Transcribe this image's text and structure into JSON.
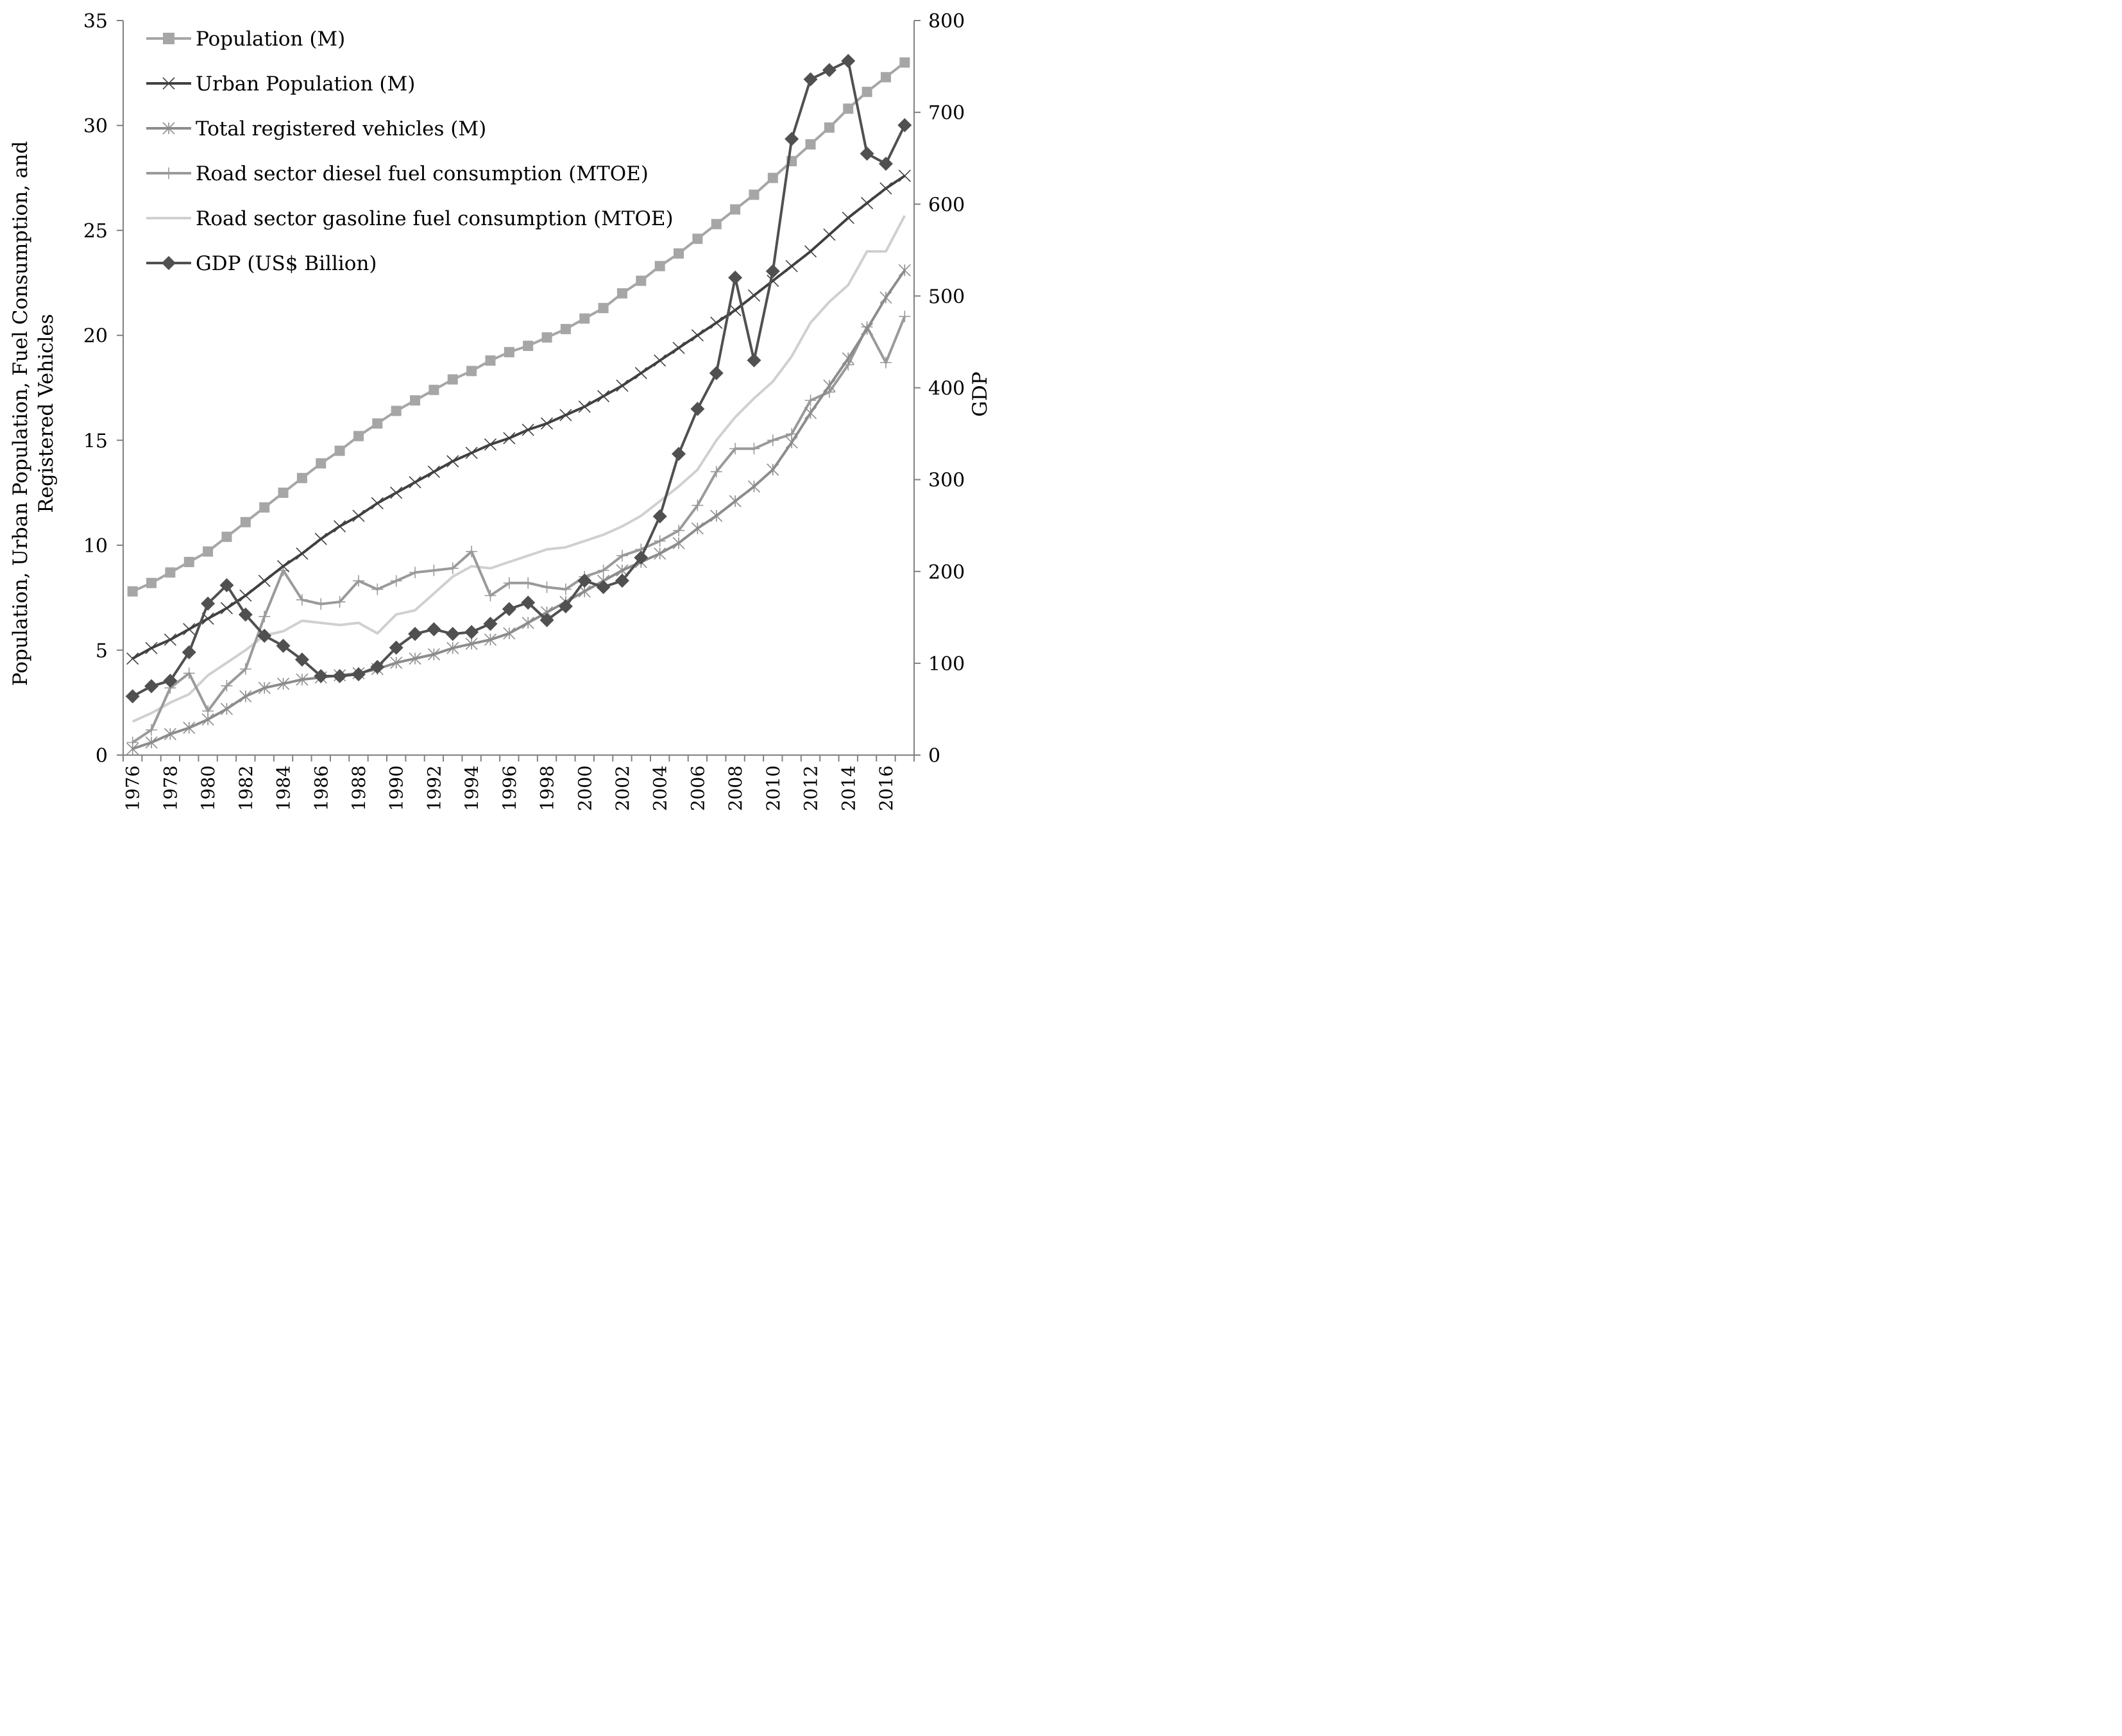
{
  "chart_data": {
    "type": "line",
    "x": [
      1976,
      1977,
      1978,
      1979,
      1980,
      1981,
      1982,
      1983,
      1984,
      1985,
      1986,
      1987,
      1988,
      1989,
      1990,
      1991,
      1992,
      1993,
      1994,
      1995,
      1996,
      1997,
      1998,
      1999,
      2000,
      2001,
      2002,
      2003,
      2004,
      2005,
      2006,
      2007,
      2008,
      2009,
      2010,
      2011,
      2012,
      2013,
      2014,
      2015,
      2016,
      2017
    ],
    "x_tick_labels": [
      "1976",
      "1978",
      "1980",
      "1982",
      "1984",
      "1986",
      "1988",
      "1990",
      "1992",
      "1994",
      "1996",
      "1998",
      "2000",
      "2002",
      "2004",
      "2006",
      "2008",
      "2010",
      "2012",
      "2014",
      "2016"
    ],
    "ylabel": "Population, Urban Population, Fuel Consumption, and Registered Vehicles",
    "ylabel_lines": [
      "Population, Urban Population, Fuel Consumption, and",
      "Registered Vehicles"
    ],
    "ylim": [
      0,
      35
    ],
    "yticks": [
      0,
      5,
      10,
      15,
      20,
      25,
      30,
      35
    ],
    "y2label": "GDP",
    "y2lim": [
      0,
      800
    ],
    "y2ticks": [
      0,
      100,
      200,
      300,
      400,
      500,
      600,
      700,
      800
    ],
    "grid": false,
    "legend_position": "top-left",
    "series": [
      {
        "name": "Population (M)",
        "axis": "left",
        "marker": "square",
        "color": "#a6a6a6",
        "values": [
          7.8,
          8.2,
          8.7,
          9.2,
          9.7,
          10.4,
          11.1,
          11.8,
          12.5,
          13.2,
          13.9,
          14.5,
          15.2,
          15.8,
          16.4,
          16.9,
          17.4,
          17.9,
          18.3,
          18.8,
          19.2,
          19.5,
          19.9,
          20.3,
          20.8,
          21.3,
          22.0,
          22.6,
          23.3,
          23.9,
          24.6,
          25.3,
          26.0,
          26.7,
          27.5,
          28.3,
          29.1,
          29.9,
          30.8,
          31.6,
          32.3,
          33.0
        ]
      },
      {
        "name": "Urban Population (M)",
        "axis": "left",
        "marker": "x",
        "color": "#404040",
        "values": [
          4.6,
          5.1,
          5.5,
          6.0,
          6.5,
          7.0,
          7.6,
          8.3,
          9.0,
          9.6,
          10.3,
          10.9,
          11.4,
          12.0,
          12.5,
          13.0,
          13.5,
          14.0,
          14.4,
          14.8,
          15.1,
          15.5,
          15.8,
          16.2,
          16.6,
          17.1,
          17.6,
          18.2,
          18.8,
          19.4,
          20.0,
          20.6,
          21.2,
          21.9,
          22.6,
          23.3,
          24.0,
          24.8,
          25.6,
          26.3,
          27.0,
          27.6
        ]
      },
      {
        "name": "Total registered vehicles (M)",
        "axis": "left",
        "marker": "asterisk",
        "color": "#8c8c8c",
        "values": [
          0.3,
          0.6,
          1.0,
          1.3,
          1.7,
          2.2,
          2.8,
          3.2,
          3.4,
          3.6,
          3.7,
          3.8,
          3.9,
          4.1,
          4.4,
          4.6,
          4.8,
          5.1,
          5.3,
          5.5,
          5.8,
          6.3,
          6.8,
          7.3,
          7.8,
          8.3,
          8.8,
          9.2,
          9.6,
          10.1,
          10.8,
          11.4,
          12.1,
          12.8,
          13.6,
          14.9,
          16.3,
          17.6,
          18.9,
          20.3,
          21.8,
          23.1
        ]
      },
      {
        "name": "Road sector diesel fuel consumption (MTOE)",
        "axis": "left",
        "marker": "plus",
        "color": "#9a9a9a",
        "values": [
          0.6,
          1.2,
          3.2,
          3.9,
          2.1,
          3.3,
          4.1,
          6.6,
          8.8,
          7.4,
          7.2,
          7.3,
          8.3,
          7.9,
          8.3,
          8.7,
          8.8,
          8.9,
          9.7,
          7.6,
          8.2,
          8.2,
          8.0,
          7.9,
          8.5,
          8.8,
          9.5,
          9.8,
          10.2,
          10.7,
          11.9,
          13.5,
          14.6,
          14.6,
          15.0,
          15.3,
          16.9,
          17.3,
          18.6,
          20.4,
          18.7,
          20.9
        ]
      },
      {
        "name": "Road sector gasoline fuel consumption (MTOE)",
        "axis": "left",
        "marker": "none",
        "color": "#d0d0d0",
        "values": [
          1.6,
          2.0,
          2.5,
          2.9,
          3.8,
          4.4,
          5.0,
          5.7,
          5.9,
          6.4,
          6.3,
          6.2,
          6.3,
          5.8,
          6.7,
          6.9,
          7.7,
          8.5,
          9.0,
          8.9,
          9.2,
          9.5,
          9.8,
          9.9,
          10.2,
          10.5,
          10.9,
          11.4,
          12.1,
          12.8,
          13.6,
          15.0,
          16.1,
          17.0,
          17.8,
          19.0,
          20.6,
          21.6,
          22.4,
          24.0,
          24.0,
          25.7
        ]
      },
      {
        "name": "GDP (US$ Billion)",
        "axis": "right",
        "marker": "diamond",
        "color": "#505050",
        "values": [
          64,
          75,
          81,
          112,
          165,
          185,
          153,
          130,
          119,
          104,
          86,
          86,
          88,
          96,
          117,
          132,
          137,
          132,
          134,
          143,
          159,
          166,
          147,
          162,
          190,
          183,
          190,
          215,
          260,
          328,
          377,
          416,
          520,
          430,
          527,
          671,
          736,
          746,
          756,
          655,
          644,
          686
        ]
      }
    ]
  }
}
